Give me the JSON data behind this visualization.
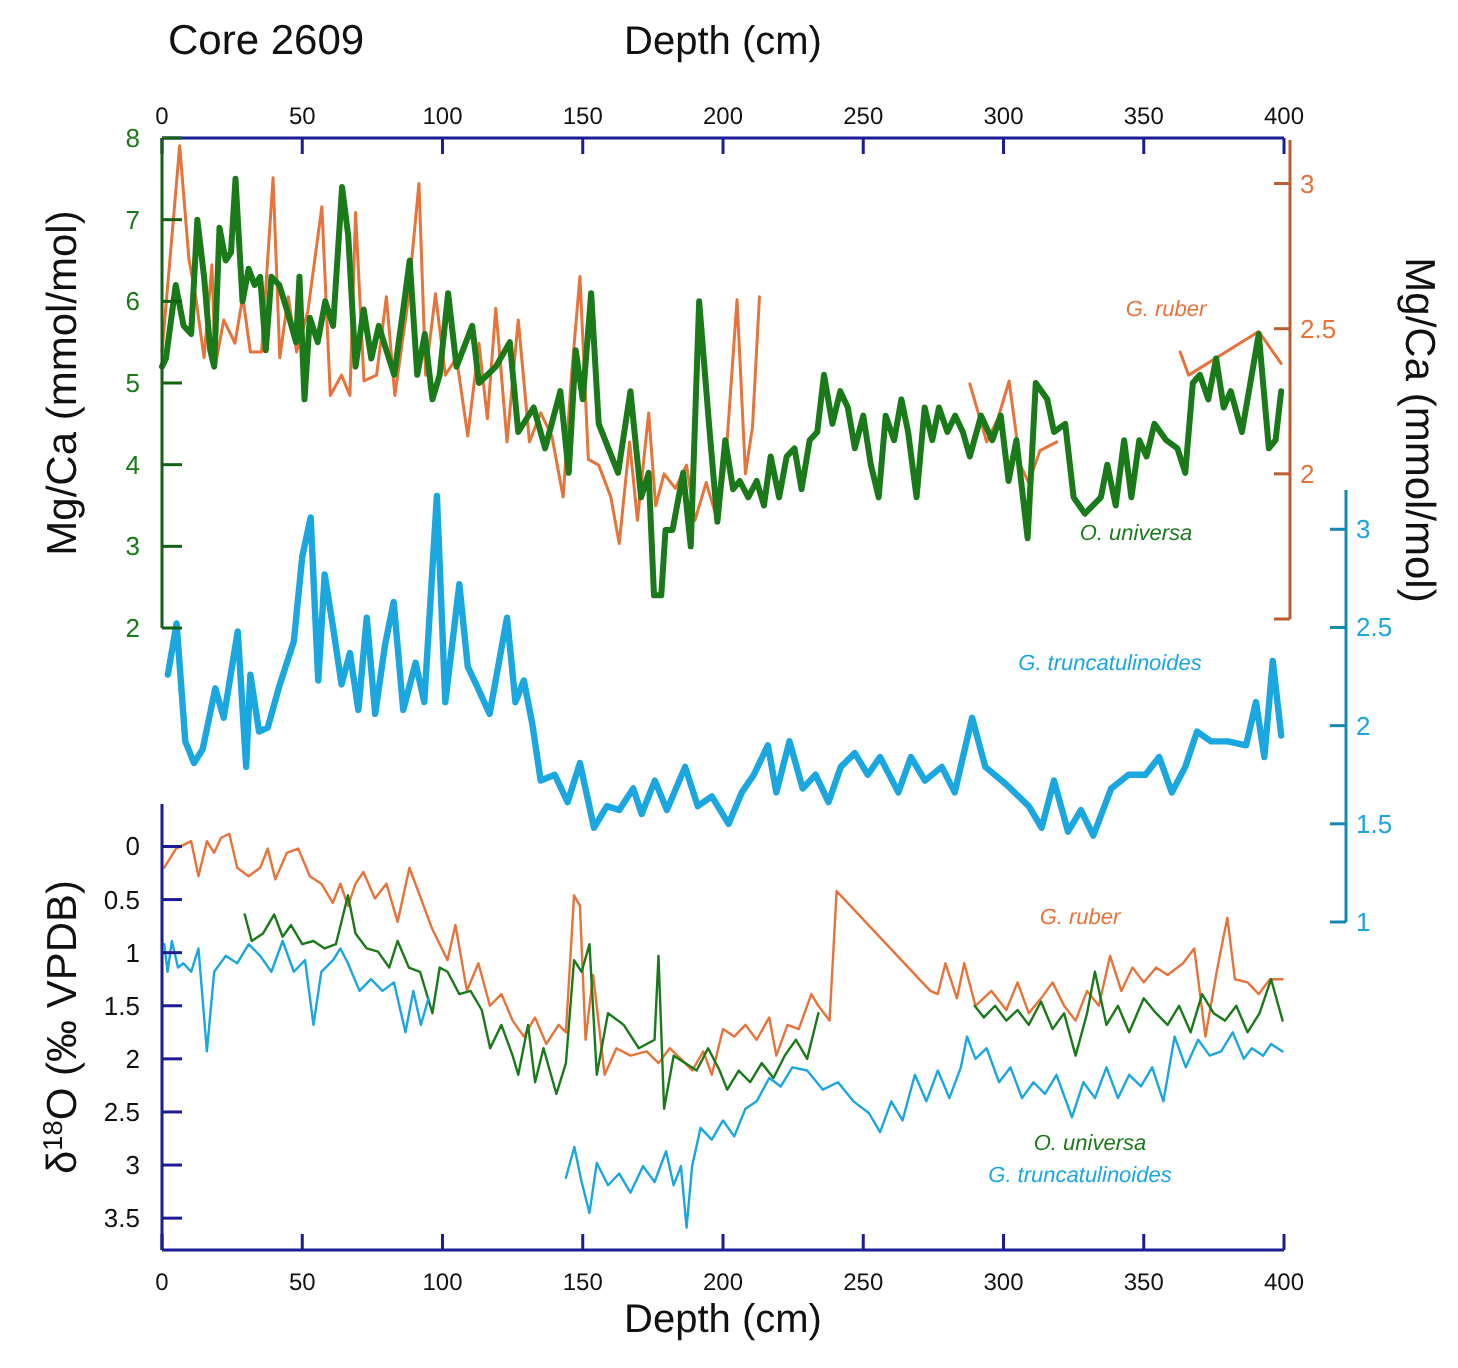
{
  "chart_data": [
    {
      "type": "line",
      "title": "Core 2609",
      "xlabel": "Depth (cm)",
      "ylabel": "Mg/Ca (mmol/mol)",
      "y2label": "Mg/Ca (mmol/mol)",
      "xlim": [
        0,
        400
      ],
      "xticks": [
        0,
        50,
        100,
        150,
        200,
        250,
        300,
        350,
        400
      ],
      "ylim": [
        2,
        8
      ],
      "yticks": [
        2,
        3,
        4,
        5,
        6,
        7,
        8
      ],
      "y2lim": [
        1.5,
        3.15
      ],
      "y2ticks": [
        {
          "value": 1.5,
          "label": null
        },
        2,
        2.5,
        3
      ],
      "y3lim": [
        1,
        3.2
      ],
      "y3ticks": [
        1,
        1.5,
        2,
        2.5,
        3
      ],
      "grid": false,
      "series": [
        {
          "name": "G. ruber",
          "color": "#e8733a",
          "axis": "y2",
          "x": [
            0,
            6.3,
            9.6,
            12,
            15,
            17.8,
            19,
            22,
            26,
            28.8,
            31.5,
            35.5,
            39.6,
            42,
            45,
            48,
            52,
            57,
            60,
            64,
            67,
            69,
            72,
            76.5,
            80,
            83,
            87.5,
            91.6,
            94,
            97.5,
            101,
            105,
            109,
            113,
            116,
            119,
            123,
            127,
            131,
            135,
            139,
            143,
            146,
            149,
            152,
            155.7,
            160,
            163,
            166.7,
            169.5,
            173.5,
            176,
            179,
            183,
            187,
            190,
            194,
            198,
            201,
            205,
            208,
            210.5,
            213,
            250,
            288,
            294,
            298,
            302,
            306,
            309,
            313,
            319,
            340,
            363,
            366,
            391,
            399
          ],
          "values": [
            2.42,
            3.13,
            2.74,
            2.61,
            2.4,
            2.72,
            2.37,
            2.53,
            2.45,
            2.61,
            2.42,
            2.42,
            3.02,
            2.4,
            2.61,
            2.42,
            2.56,
            2.92,
            2.27,
            2.34,
            2.27,
            2.9,
            2.32,
            2.34,
            2.61,
            2.27,
            2.58,
            3.0,
            2.34,
            2.62,
            2.34,
            2.4,
            2.13,
            2.45,
            2.19,
            2.57,
            2.11,
            2.53,
            2.11,
            2.21,
            2.13,
            1.92,
            2.34,
            2.68,
            2.05,
            2.03,
            1.92,
            1.76,
            2.11,
            1.84,
            2.21,
            1.89,
            2.0,
            1.95,
            2.03,
            1.84,
            1.97,
            1.84,
            2.05,
            2.6,
            2.0,
            2.16,
            2.61,
            null,
            2.31,
            2.11,
            2.19,
            2.32,
            2.03,
            1.97,
            2.08,
            2.11,
            null,
            2.42,
            2.34,
            2.49,
            2.38
          ]
        },
        {
          "name": "O. universa",
          "color": "#1a7a1a",
          "axis": "y",
          "x": [
            0,
            1.4,
            4.9,
            7.7,
            10.4,
            12.6,
            15,
            17.2,
            18.6,
            20.5,
            22.7,
            24.6,
            26.2,
            28.7,
            30.9,
            33,
            35,
            37,
            39,
            41.8,
            44.5,
            47.8,
            49,
            50.8,
            52.7,
            55.5,
            58.2,
            61,
            64.2,
            66.4,
            69,
            71.9,
            74.6,
            77.3,
            80,
            82.8,
            86,
            88.3,
            91,
            93.7,
            96.4,
            99,
            102,
            105,
            110.6,
            113,
            119,
            124,
            127,
            132.5,
            136.6,
            142,
            145,
            147.5,
            150,
            153,
            155.7,
            162.6,
            167,
            170.8,
            173.5,
            175.4,
            178,
            179.5,
            182,
            185.8,
            188.5,
            191.5,
            195,
            198,
            200.8,
            203.6,
            206,
            209,
            212,
            214.6,
            217,
            220,
            222.7,
            225.5,
            228,
            230.9,
            233.6,
            236,
            239,
            241.8,
            244.5,
            247,
            250,
            252.7,
            255.5,
            258,
            261,
            263.6,
            266,
            269,
            271.9,
            274.6,
            277,
            280,
            282.8,
            285.5,
            288,
            292,
            296,
            299,
            301.8,
            304.6,
            308.6,
            311.5,
            315.6,
            318,
            322,
            325,
            329,
            334.7,
            337,
            340,
            343,
            345.6,
            348.4,
            351,
            353.8,
            358,
            362,
            364.8,
            367.5,
            370,
            373,
            375.8,
            378.5,
            381,
            385,
            391,
            394.6,
            397,
            399
          ],
          "values": [
            5.2,
            5.3,
            6.2,
            5.7,
            5.6,
            7.0,
            6.3,
            5.4,
            5.2,
            6.9,
            6.5,
            6.6,
            7.5,
            6.0,
            6.4,
            6.2,
            6.3,
            5.4,
            6.3,
            6.2,
            5.9,
            5.5,
            6.3,
            4.8,
            5.8,
            5.5,
            6.0,
            5.7,
            7.4,
            6.8,
            5.2,
            5.9,
            5.3,
            5.7,
            5.4,
            5.1,
            5.9,
            6.5,
            5.1,
            5.6,
            4.8,
            5.1,
            6.1,
            5.2,
            5.7,
            5.0,
            5.2,
            5.5,
            4.4,
            4.7,
            4.2,
            4.9,
            3.9,
            5.4,
            4.8,
            6.1,
            4.5,
            3.9,
            4.9,
            3.6,
            3.9,
            2.4,
            2.4,
            3.2,
            3.2,
            3.9,
            3.0,
            6.0,
            4.5,
            3.3,
            4.3,
            3.7,
            3.8,
            3.6,
            3.8,
            3.5,
            4.1,
            3.6,
            4.1,
            4.2,
            3.7,
            4.3,
            4.4,
            5.1,
            4.5,
            4.9,
            4.7,
            4.2,
            4.6,
            4.0,
            3.6,
            4.6,
            4.3,
            4.8,
            4.4,
            3.6,
            4.7,
            4.3,
            4.7,
            4.4,
            4.6,
            4.4,
            4.1,
            4.6,
            4.3,
            4.6,
            3.8,
            4.3,
            3.1,
            5.0,
            4.8,
            4.4,
            4.5,
            3.6,
            3.4,
            3.6,
            4.0,
            3.5,
            4.3,
            3.6,
            4.3,
            4.1,
            4.5,
            4.3,
            4.2,
            3.9,
            5.0,
            5.1,
            4.8,
            5.3,
            4.7,
            4.9,
            4.4,
            5.6,
            4.2,
            4.3,
            4.9
          ]
        },
        {
          "name": "G. truncatulinoides",
          "color": "#1aa7e0",
          "axis": "y3",
          "x": [
            2.1,
            5.2,
            8.3,
            11.4,
            14.5,
            19,
            22,
            27,
            30,
            31.5,
            34.6,
            37.7,
            42,
            47,
            50,
            53,
            55.7,
            58,
            61,
            64,
            67,
            70,
            73,
            76,
            79.5,
            82.6,
            86,
            90.4,
            93.5,
            98,
            101,
            106,
            109,
            112,
            116.8,
            123,
            126,
            129,
            132,
            135,
            140,
            144.6,
            149,
            154,
            158.6,
            163,
            168,
            171,
            175.7,
            180,
            186.5,
            191,
            196,
            202,
            206.7,
            211,
            216,
            219,
            223.7,
            228.4,
            233,
            237.6,
            242,
            247,
            251.6,
            256,
            262.5,
            267,
            272,
            278,
            282.6,
            288.8,
            293.5,
            301,
            309,
            313.6,
            318,
            323,
            327.6,
            332,
            338.4,
            344.6,
            350.6,
            355.5,
            360,
            364.8,
            369,
            374,
            380,
            386.5,
            390,
            393,
            396,
            399
          ],
          "values": [
            2.26,
            2.52,
            1.92,
            1.81,
            1.88,
            2.19,
            2.04,
            2.48,
            1.79,
            2.26,
            1.97,
            1.99,
            2.21,
            2.43,
            2.86,
            3.06,
            2.23,
            2.77,
            2.5,
            2.21,
            2.37,
            2.08,
            2.55,
            2.06,
            2.41,
            2.63,
            2.08,
            2.32,
            2.12,
            3.17,
            2.12,
            2.72,
            2.3,
            2.21,
            2.06,
            2.55,
            2.12,
            2.23,
            2.01,
            1.72,
            1.75,
            1.61,
            1.81,
            1.48,
            1.59,
            1.57,
            1.68,
            1.55,
            1.72,
            1.57,
            1.79,
            1.59,
            1.64,
            1.5,
            1.66,
            1.75,
            1.9,
            1.66,
            1.92,
            1.68,
            1.75,
            1.61,
            1.79,
            1.86,
            1.75,
            1.84,
            1.66,
            1.84,
            1.72,
            1.79,
            1.66,
            2.04,
            1.79,
            1.7,
            1.59,
            1.48,
            1.72,
            1.46,
            1.57,
            1.44,
            1.68,
            1.75,
            1.75,
            1.84,
            1.66,
            1.79,
            1.97,
            1.92,
            1.92,
            1.9,
            2.12,
            1.84,
            2.33,
            1.95
          ]
        }
      ]
    },
    {
      "type": "line",
      "xlabel": "Depth (cm)",
      "ylabel": "δ$^{18}$O (‰ VPDB)",
      "xlim": [
        0,
        400
      ],
      "xticks": [
        0,
        50,
        100,
        150,
        200,
        250,
        300,
        350,
        400
      ],
      "ylim": [
        3.8,
        -0.4
      ],
      "yticks": [
        0,
        0.5,
        1,
        1.5,
        2,
        2.5,
        3,
        3.5
      ],
      "grid": false,
      "series": [
        {
          "name": "G. ruber",
          "color": "#e8733a",
          "x": [
            0.8,
            5,
            10.4,
            13,
            16,
            18.6,
            21,
            24,
            26.8,
            30.9,
            35,
            37.7,
            40.4,
            44.5,
            48.6,
            52.7,
            56.8,
            60.9,
            63.6,
            66.3,
            69,
            71.8,
            75.9,
            80,
            84,
            88.2,
            92.3,
            96.4,
            101.8,
            104.6,
            108.7,
            112.8,
            116.9,
            121,
            125,
            129,
            133,
            137,
            141.4,
            144,
            146.9,
            149,
            151,
            153.7,
            157.8,
            162,
            167,
            172.8,
            177,
            181,
            185,
            189,
            193,
            196,
            200,
            204,
            208,
            212,
            216.5,
            219,
            223,
            227,
            231.5,
            234,
            238,
            240.5,
            273.9,
            276.6,
            279.3,
            283.4,
            286,
            290,
            295.7,
            301,
            305,
            309,
            313.4,
            317.5,
            321.6,
            325.7,
            329.8,
            334,
            338,
            342,
            346,
            350,
            354.4,
            358.5,
            364,
            368,
            372,
            376,
            379.8,
            382.5,
            387,
            391,
            395,
            399.5
          ],
          "values": [
            0.2,
            0.02,
            -0.05,
            0.28,
            -0.05,
            0.06,
            -0.08,
            -0.12,
            0.2,
            0.28,
            0.2,
            0.02,
            0.31,
            0.06,
            0.02,
            0.28,
            0.35,
            0.53,
            0.35,
            0.56,
            0.35,
            0.24,
            0.49,
            0.35,
            0.71,
            0.2,
            0.49,
            0.78,
            1.07,
            0.74,
            1.36,
            1.1,
            1.5,
            1.39,
            1.64,
            1.79,
            1.61,
            1.86,
            1.68,
            1.75,
            0.46,
            0.56,
            1.82,
            1.21,
            2.15,
            1.9,
            1.97,
            1.93,
            2.04,
            1.9,
            2.0,
            2.11,
            1.93,
            2.15,
            1.72,
            1.79,
            1.68,
            1.82,
            1.61,
            1.97,
            1.68,
            1.72,
            1.39,
            1.5,
            1.64,
            0.42,
            1.36,
            1.39,
            1.1,
            1.43,
            1.1,
            1.5,
            1.36,
            1.54,
            1.28,
            1.57,
            1.43,
            1.28,
            1.5,
            1.64,
            1.36,
            1.5,
            1.03,
            1.36,
            1.14,
            1.28,
            1.14,
            1.21,
            1.1,
            0.96,
            1.79,
            1.18,
            0.67,
            1.25,
            1.28,
            1.39,
            1.25,
            1.25
          ]
        },
        {
          "name": "O. universa",
          "color": "#1a7a1a",
          "x": [
            29.5,
            32,
            36,
            40,
            43,
            46,
            50,
            54,
            58,
            62,
            66.3,
            69,
            73,
            77,
            81,
            84,
            88,
            92,
            96.4,
            99,
            101.8,
            106,
            110,
            114,
            117,
            121,
            125,
            127,
            130.5,
            133,
            136,
            140.6,
            144,
            146.9,
            149.6,
            152.4,
            155,
            159,
            164.6,
            170,
            175.6,
            177,
            179,
            182.4,
            186.5,
            190.6,
            194.7,
            198.8,
            201.5,
            205.6,
            209.7,
            213.8,
            218,
            222,
            226,
            230,
            234,
            260,
            289.7,
            293,
            297,
            301,
            305,
            309,
            313.4,
            317.5,
            321.6,
            325.7,
            329.8,
            332.6,
            336.7,
            340.8,
            344.8,
            350,
            354.4,
            358.5,
            362.6,
            366.7,
            370.8,
            374.9,
            379,
            383,
            387,
            391.3,
            395.4,
            399.5
          ],
          "values": [
            0.64,
            0.89,
            0.82,
            0.64,
            0.85,
            0.74,
            0.92,
            0.89,
            0.96,
            0.92,
            0.46,
            0.82,
            0.96,
            0.99,
            1.14,
            0.89,
            1.14,
            1.18,
            1.57,
            1.14,
            1.18,
            1.39,
            1.36,
            1.54,
            1.9,
            1.68,
            1.97,
            2.15,
            1.68,
            2.22,
            1.9,
            2.33,
            2.04,
            1.07,
            1.18,
            0.92,
            2.15,
            1.57,
            1.68,
            1.9,
            1.82,
            1.03,
            2.47,
            1.97,
            2.04,
            2.11,
            1.9,
            2.11,
            2.29,
            2.11,
            2.22,
            2.04,
            2.18,
            1.97,
            1.82,
            2.0,
            1.57,
            null,
            1.5,
            1.61,
            1.5,
            1.64,
            1.54,
            1.68,
            1.46,
            1.72,
            1.57,
            1.97,
            1.57,
            1.18,
            1.68,
            1.5,
            1.75,
            1.43,
            1.57,
            1.68,
            1.5,
            1.75,
            1.39,
            1.57,
            1.64,
            1.5,
            1.75,
            1.57,
            1.25,
            1.64
          ]
        },
        {
          "name": "G. truncatulinoides",
          "color": "#1aa7e0",
          "x": [
            0.8,
            2,
            3.5,
            5.7,
            7.6,
            10.4,
            13,
            16,
            18.6,
            22.7,
            26.8,
            30.9,
            35,
            39,
            43,
            47,
            51,
            54,
            56.8,
            61,
            63.6,
            66.3,
            70.4,
            74.5,
            78.6,
            82.7,
            86.8,
            89.6,
            92.3,
            95,
            120,
            144,
            147,
            149.6,
            152.4,
            155,
            159,
            163,
            167,
            171.5,
            175.6,
            179.7,
            182.4,
            185,
            187,
            189,
            192,
            196,
            200,
            204,
            208,
            212,
            216.5,
            220.6,
            224.7,
            230,
            235.6,
            241,
            246.5,
            252,
            256,
            260,
            264,
            268.4,
            272.5,
            276.6,
            280.7,
            284.8,
            287,
            290,
            294,
            298.4,
            302.5,
            306.6,
            310.7,
            314.8,
            318.9,
            324.4,
            328.5,
            332.6,
            336.7,
            340.8,
            344.8,
            349,
            353,
            357,
            361,
            365,
            369.4,
            373.5,
            377.6,
            381.7,
            385.7,
            388.5,
            392.6,
            395.4,
            399.5
          ],
          "values": [
            0.92,
            1.18,
            0.89,
            1.14,
            1.1,
            1.18,
            0.96,
            1.93,
            1.18,
            1.03,
            1.1,
            0.92,
            1.03,
            1.18,
            0.89,
            1.18,
            1.07,
            1.68,
            1.18,
            1.07,
            0.96,
            1.1,
            1.36,
            1.25,
            1.36,
            1.28,
            1.75,
            1.36,
            1.68,
            1.43,
            null,
            3.12,
            2.83,
            3.16,
            3.45,
            2.98,
            3.19,
            3.08,
            3.26,
            3.01,
            3.16,
            2.87,
            3.19,
            3.01,
            3.59,
            3.01,
            2.65,
            2.76,
            2.58,
            2.73,
            2.47,
            2.4,
            2.18,
            2.26,
            2.08,
            2.11,
            2.29,
            2.22,
            2.4,
            2.51,
            2.69,
            2.4,
            2.58,
            2.15,
            2.4,
            2.11,
            2.37,
            2.08,
            1.79,
            2.0,
            1.9,
            2.22,
            2.08,
            2.37,
            2.22,
            2.33,
            2.15,
            2.55,
            2.22,
            2.37,
            2.08,
            2.37,
            2.15,
            2.26,
            2.08,
            2.4,
            1.79,
            2.08,
            1.82,
            1.97,
            1.93,
            1.75,
            2.0,
            1.9,
            1.97,
            1.86,
            1.93
          ]
        }
      ]
    }
  ]
}
